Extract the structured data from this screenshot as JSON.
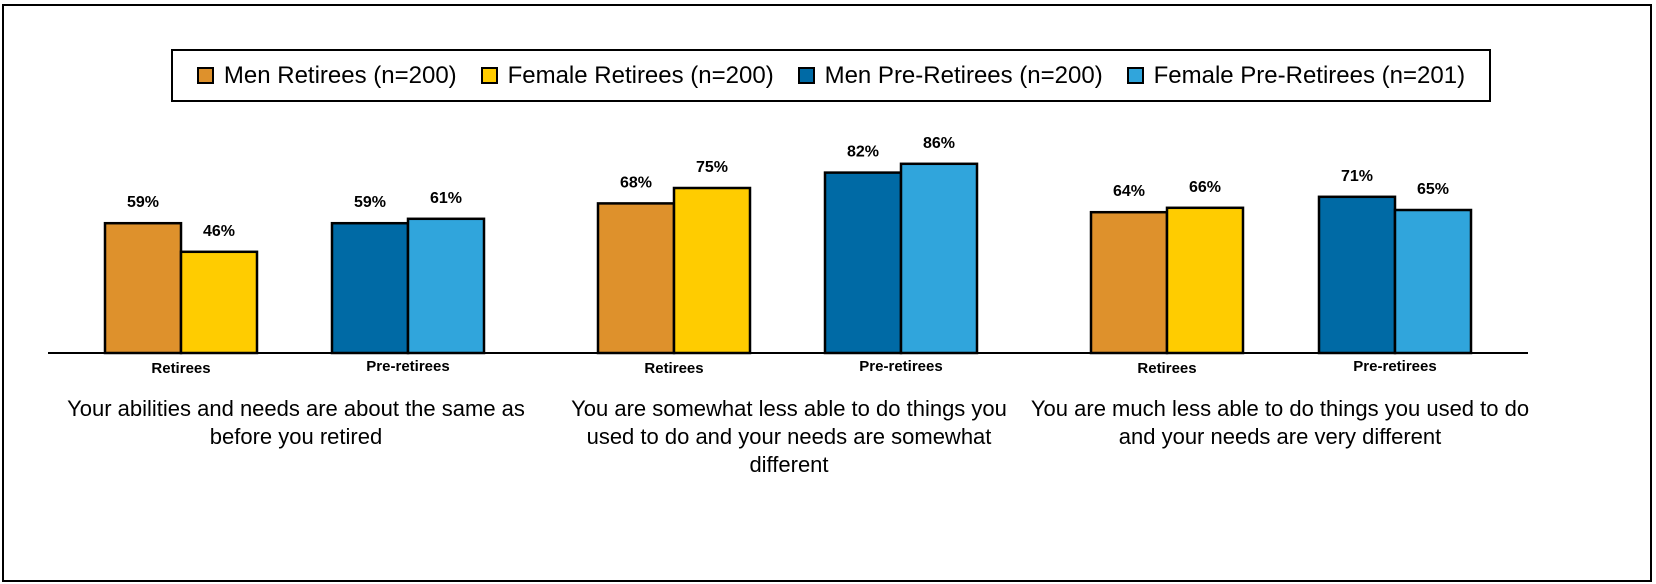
{
  "chart_data": {
    "type": "bar",
    "legend_position": "top",
    "grid": false,
    "ylim": [
      0,
      100
    ],
    "series": [
      {
        "name": "Men Retirees (n=200)",
        "color": "#DE912C"
      },
      {
        "name": "Female Retirees (n=200)",
        "color": "#FFCC00"
      },
      {
        "name": "Men Pre-Retirees (n=200)",
        "color": "#006AA5"
      },
      {
        "name": "Female Pre-Retirees (n=201)",
        "color": "#30A5DC"
      }
    ],
    "categories": [
      {
        "label": "Your abilities and needs are about the same as before you retired",
        "groups": [
          {
            "label": "Retirees",
            "bars": [
              {
                "series": 0,
                "value": 59,
                "text": "59%"
              },
              {
                "series": 1,
                "value": 46,
                "text": "46%"
              }
            ]
          },
          {
            "label": "Pre-retirees",
            "bars": [
              {
                "series": 2,
                "value": 59,
                "text": "59%"
              },
              {
                "series": 3,
                "value": 61,
                "text": "61%"
              }
            ]
          }
        ]
      },
      {
        "label": "You are somewhat less able to do things you used to do and your needs are somewhat different",
        "groups": [
          {
            "label": "Retirees",
            "bars": [
              {
                "series": 0,
                "value": 68,
                "text": "68%"
              },
              {
                "series": 1,
                "value": 75,
                "text": "75%"
              }
            ]
          },
          {
            "label": "Pre-retirees",
            "bars": [
              {
                "series": 2,
                "value": 82,
                "text": "82%"
              },
              {
                "series": 3,
                "value": 86,
                "text": "86%"
              }
            ]
          }
        ]
      },
      {
        "label": "You are much less able to do things you used to do and your needs are very different",
        "groups": [
          {
            "label": "Retirees",
            "bars": [
              {
                "series": 0,
                "value": 64,
                "text": "64%"
              },
              {
                "series": 1,
                "value": 66,
                "text": "66%"
              }
            ]
          },
          {
            "label": "Pre-retirees",
            "bars": [
              {
                "series": 2,
                "value": 71,
                "text": "71%"
              },
              {
                "series": 3,
                "value": 65,
                "text": "65%"
              }
            ]
          }
        ]
      }
    ]
  }
}
